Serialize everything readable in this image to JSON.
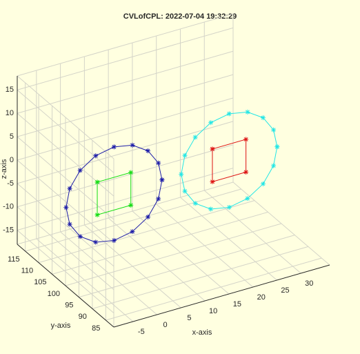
{
  "chart_data": {
    "type": "line3d",
    "title": "CVLofCPL: 2022-07-04 19:32:29",
    "xlabel": "x-axis",
    "ylabel": "y-axis",
    "zlabel": "z-axis",
    "xlim": [
      -9,
      36
    ],
    "ylim": [
      82,
      118
    ],
    "zlim": [
      -18,
      18
    ],
    "xticks": [
      -5,
      0,
      5,
      10,
      15,
      20,
      25,
      30
    ],
    "yticks": [
      85,
      90,
      95,
      100,
      105,
      110,
      115
    ],
    "zticks": [
      -15,
      -10,
      -5,
      0,
      5,
      10,
      15
    ],
    "grid": true,
    "marker": "*",
    "series": [
      {
        "color": "#1c1ca8",
        "x": [
          10,
          9.24,
          7.07,
          3.83,
          0,
          -3.83,
          -7.07,
          -9.24,
          -10,
          -9.24,
          -7.07,
          -3.83,
          0,
          3.83,
          7.07,
          9.24,
          10
        ],
        "y": [
          98,
          98,
          98,
          98,
          98,
          98,
          98,
          98,
          98,
          98,
          98,
          98,
          98,
          98,
          98,
          98,
          98
        ],
        "z": [
          0,
          3.83,
          7.07,
          9.24,
          10,
          9.24,
          7.07,
          3.83,
          0,
          -3.83,
          -7.07,
          -9.24,
          -10,
          -9.24,
          -7.07,
          -3.83,
          0
        ]
      },
      {
        "color": "#22e6e6",
        "x": [
          34,
          33.24,
          31.07,
          27.83,
          24,
          20.17,
          16.93,
          14.76,
          14,
          14.76,
          16.93,
          20.17,
          24,
          27.83,
          31.07,
          33.24,
          34
        ],
        "y": [
          98,
          98,
          98,
          98,
          98,
          98,
          98,
          98,
          98,
          98,
          98,
          98,
          98,
          98,
          98,
          98,
          98
        ],
        "z": [
          0,
          3.83,
          7.07,
          9.24,
          10,
          9.24,
          7.07,
          3.83,
          0,
          -3.83,
          -7.07,
          -9.24,
          -10,
          -9.24,
          -7.07,
          -3.83,
          0
        ]
      },
      {
        "color": "#11dd11",
        "x": [
          -3.5,
          3.5,
          3.5,
          -3.5,
          -3.5
        ],
        "y": [
          98,
          98,
          98,
          98,
          98
        ],
        "z": [
          3.5,
          3.5,
          -3.5,
          -3.5,
          3.5
        ]
      },
      {
        "color": "#dd1111",
        "x": [
          20.5,
          27.5,
          27.5,
          20.5,
          20.5
        ],
        "y": [
          98,
          98,
          98,
          98,
          98
        ],
        "z": [
          3.5,
          3.5,
          -3.5,
          -3.5,
          3.5
        ]
      }
    ]
  }
}
